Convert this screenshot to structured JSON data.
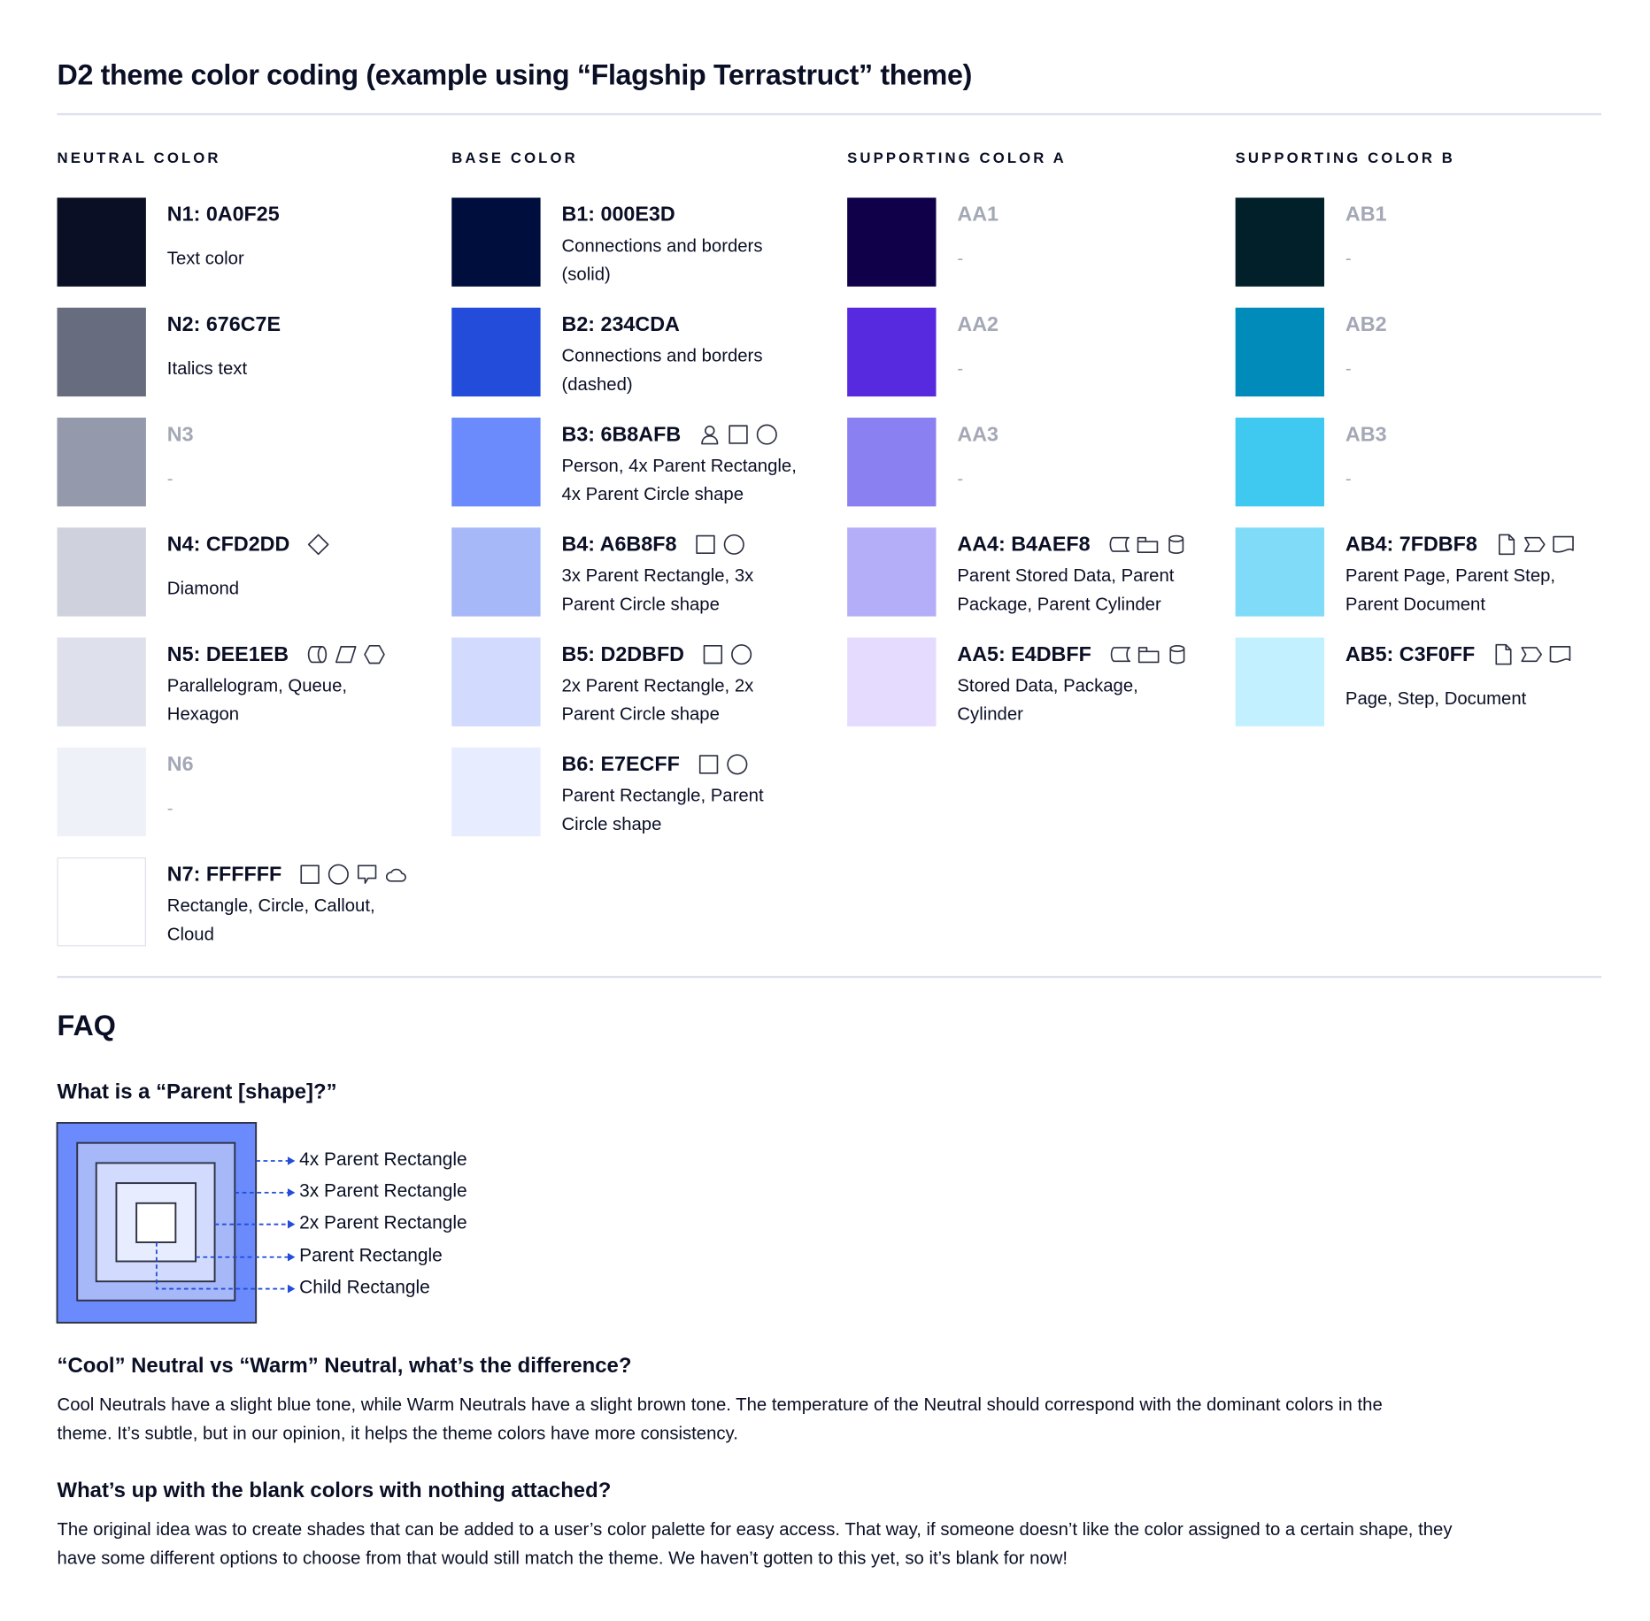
{
  "title": "D2 theme color coding (example using “Flagship Terrastruct” theme)",
  "columns": [
    {
      "header": "NEUTRAL COLOR",
      "entries": [
        {
          "label": "N1: 0A0F25",
          "color": "#0A0F25",
          "desc": [
            "Text color"
          ],
          "icons": []
        },
        {
          "label": "N2: 676C7E",
          "color": "#676C7E",
          "desc": [
            "Italics text"
          ],
          "icons": []
        },
        {
          "label": "N3",
          "color": "#9499AB",
          "blank": true,
          "desc": [
            "-"
          ],
          "icons": []
        },
        {
          "label": "N4: CFD2DD",
          "color": "#CFD2DD",
          "desc": [
            "Diamond"
          ],
          "icons": [
            "diamond"
          ]
        },
        {
          "label": "N5: DEE1EB",
          "color": "#DEE1EB",
          "desc": [
            "Parallelogram, Queue,",
            "Hexagon"
          ],
          "icons": [
            "queue",
            "parallelogram",
            "hexagon"
          ]
        },
        {
          "label": "N6",
          "color": "#EEF1F8",
          "blank": true,
          "desc": [
            "-"
          ],
          "icons": []
        },
        {
          "label": "N7: FFFFFF",
          "color": "#FFFFFF",
          "bordered": true,
          "desc": [
            "Rectangle, Circle, Callout,",
            "Cloud"
          ],
          "icons": [
            "square",
            "circle",
            "callout",
            "cloud"
          ]
        }
      ]
    },
    {
      "header": "BASE COLOR",
      "entries": [
        {
          "label": "B1: 000E3D",
          "color": "#000E3D",
          "desc": [
            "Connections and borders",
            "(solid)"
          ],
          "icons": []
        },
        {
          "label": "B2: 234CDA",
          "color": "#234CDA",
          "desc": [
            "Connections and borders",
            "(dashed)"
          ],
          "icons": []
        },
        {
          "label": "B3: 6B8AFB",
          "color": "#6B8AFB",
          "desc": [
            "Person, 4x Parent Rectangle,",
            "4x Parent Circle shape"
          ],
          "icons": [
            "person",
            "square",
            "circle"
          ]
        },
        {
          "label": "B4: A6B8F8",
          "color": "#A6B8F8",
          "desc": [
            "3x Parent Rectangle, 3x",
            "Parent Circle shape"
          ],
          "icons": [
            "square",
            "circle"
          ]
        },
        {
          "label": "B5: D2DBFD",
          "color": "#D2DBFD",
          "desc": [
            "2x Parent Rectangle, 2x",
            "Parent Circle shape"
          ],
          "icons": [
            "square",
            "circle"
          ]
        },
        {
          "label": "B6: E7ECFF",
          "color": "#E7ECFF",
          "desc": [
            "Parent Rectangle, Parent",
            "Circle shape"
          ],
          "icons": [
            "square",
            "circle"
          ]
        }
      ]
    },
    {
      "header": "SUPPORTING COLOR A",
      "entries": [
        {
          "label": "AA1",
          "color": "#0F0049",
          "blank": true,
          "desc": [
            "-"
          ],
          "icons": []
        },
        {
          "label": "AA2",
          "color": "#5729DF",
          "blank": true,
          "desc": [
            "-"
          ],
          "icons": []
        },
        {
          "label": "AA3",
          "color": "#8B80F2",
          "blank": true,
          "desc": [
            "-"
          ],
          "icons": []
        },
        {
          "label": "AA4: B4AEF8",
          "color": "#B4AEF8",
          "desc": [
            "Parent Stored Data, Parent",
            "Package,  Parent Cylinder"
          ],
          "icons": [
            "stored-data",
            "package",
            "cylinder"
          ]
        },
        {
          "label": "AA5: E4DBFF",
          "color": "#E4DBFF",
          "desc": [
            "Stored Data, Package,",
            "Cylinder"
          ],
          "icons": [
            "stored-data",
            "package",
            "cylinder"
          ]
        }
      ]
    },
    {
      "header": "SUPPORTING COLOR B",
      "entries": [
        {
          "label": "AB1",
          "color": "#01202A",
          "blank": true,
          "desc": [
            "-"
          ],
          "icons": []
        },
        {
          "label": "AB2",
          "color": "#008BBA",
          "blank": true,
          "desc": [
            "-"
          ],
          "icons": []
        },
        {
          "label": "AB3",
          "color": "#3FC9F1",
          "blank": true,
          "desc": [
            "-"
          ],
          "icons": []
        },
        {
          "label": "AB4: 7FDBF8",
          "color": "#7FDBF8",
          "desc": [
            "Parent Page, Parent Step,",
            "Parent Document"
          ],
          "icons": [
            "page",
            "step",
            "document"
          ]
        },
        {
          "label": "AB5: C3F0FF",
          "color": "#C3F0FF",
          "desc": [
            "Page, Step, Document"
          ],
          "icons": [
            "page",
            "step",
            "document"
          ]
        }
      ]
    }
  ],
  "faq": {
    "title": "FAQ",
    "q1": "What is a “Parent [shape]?”",
    "diagram": {
      "labels": [
        "4x Parent Rectangle",
        "3x Parent Rectangle",
        "2x Parent Rectangle",
        "Parent Rectangle",
        "Child Rectangle"
      ],
      "fills": [
        "#6B8AFB",
        "#A6B8F8",
        "#D2DBFD",
        "#E7ECFF",
        "#FFFFFF"
      ],
      "arrow_color": "#234CDA"
    },
    "q2": "“Cool” Neutral vs “Warm” Neutral, what’s the difference?",
    "a2": [
      "Cool Neutrals have a slight blue tone, while Warm Neutrals have a slight brown tone. The temperature of the Neutral should correspond with the dominant colors in the",
      "theme. It’s subtle, but in our opinion, it helps the theme colors have more consistency."
    ],
    "q3": "What’s up with the blank colors with nothing attached?",
    "a3": [
      "The original idea was to create shades that can be added to a user’s color palette for easy access. That way, if someone doesn’t like the color assigned to a certain shape, they",
      "have some different options to choose from that would still match the theme. We haven’t gotten to this yet, so it’s blank for now!"
    ]
  }
}
